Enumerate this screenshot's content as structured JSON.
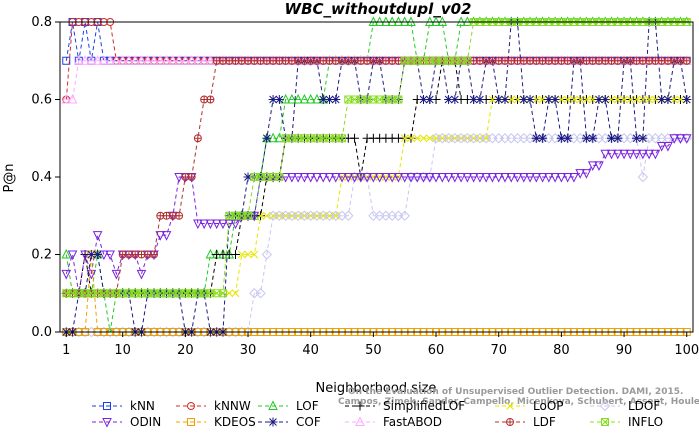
{
  "chart_data": {
    "type": "line",
    "title": "WBC_withoutdupl_v02",
    "xlabel": "Neighborhood size",
    "ylabel": "P@n",
    "xlim": [
      0,
      101
    ],
    "ylim": [
      0,
      0.8
    ],
    "xticks": [
      1,
      10,
      20,
      30,
      40,
      50,
      60,
      70,
      80,
      90,
      100
    ],
    "yticks": [
      0.0,
      0.2,
      0.4,
      0.6,
      0.8
    ],
    "grid": false,
    "legend_position": "bottom",
    "watermark": [
      "Campos, Zimek, Sander, Campello, Micenkova, Schubert, Assent, Houle",
      "On the Evaluation of Unsupervised Outlier Detection. DAMI, 2015."
    ],
    "series": [
      {
        "name": "kNN",
        "color": "#1a3ee6",
        "marker": "square",
        "dash": "4,3",
        "points": [
          [
            1,
            0.7
          ],
          [
            2,
            0.8
          ],
          [
            3,
            0.7
          ],
          [
            4,
            0.8
          ],
          [
            5,
            0.7
          ],
          [
            6,
            0.8
          ],
          [
            7,
            0.7
          ],
          [
            10,
            0.7
          ],
          [
            20,
            0.7
          ],
          [
            40,
            0.7
          ],
          [
            60,
            0.7
          ],
          [
            80,
            0.7
          ],
          [
            100,
            0.7
          ]
        ]
      },
      {
        "name": "kNNW",
        "color": "#d42a2a",
        "marker": "circle",
        "dash": "4,3",
        "points": [
          [
            1,
            0.6
          ],
          [
            2,
            0.8
          ],
          [
            4,
            0.8
          ],
          [
            6,
            0.8
          ],
          [
            8,
            0.8
          ],
          [
            9,
            0.7
          ],
          [
            10,
            0.7
          ],
          [
            30,
            0.7
          ],
          [
            60,
            0.7
          ],
          [
            100,
            0.7
          ]
        ]
      },
      {
        "name": "LOF",
        "color": "#22cc22",
        "marker": "triangle",
        "dash": "4,3",
        "points": [
          [
            1,
            0.2
          ],
          [
            2,
            0.1
          ],
          [
            5,
            0.1
          ],
          [
            6,
            0.2
          ],
          [
            7,
            0.1
          ],
          [
            8,
            0.0
          ],
          [
            9,
            0.1
          ],
          [
            14,
            0.1
          ],
          [
            23,
            0.1
          ],
          [
            24,
            0.2
          ],
          [
            27,
            0.2
          ],
          [
            28,
            0.3
          ],
          [
            31,
            0.3
          ],
          [
            32,
            0.4
          ],
          [
            33,
            0.5
          ],
          [
            35,
            0.5
          ],
          [
            36,
            0.6
          ],
          [
            42,
            0.6
          ],
          [
            43,
            0.7
          ],
          [
            48,
            0.7
          ],
          [
            50,
            0.8
          ],
          [
            56,
            0.8
          ],
          [
            57,
            0.7
          ],
          [
            59,
            0.8
          ],
          [
            62,
            0.7
          ],
          [
            64,
            0.8
          ],
          [
            72,
            0.8
          ],
          [
            82,
            0.8
          ],
          [
            90,
            0.8
          ],
          [
            100,
            0.8
          ]
        ]
      },
      {
        "name": "SimplifiedLOF",
        "color": "#000000",
        "marker": "plus",
        "dash": "4,3",
        "points": [
          [
            1,
            0.1
          ],
          [
            3,
            0.1
          ],
          [
            4,
            0.2
          ],
          [
            5,
            0.1
          ],
          [
            10,
            0.1
          ],
          [
            22,
            0.1
          ],
          [
            25,
            0.2
          ],
          [
            28,
            0.2
          ],
          [
            29,
            0.3
          ],
          [
            32,
            0.3
          ],
          [
            33,
            0.4
          ],
          [
            35,
            0.4
          ],
          [
            36,
            0.5
          ],
          [
            45,
            0.5
          ],
          [
            48,
            0.4
          ],
          [
            49,
            0.5
          ],
          [
            56,
            0.5
          ],
          [
            57,
            0.6
          ],
          [
            60,
            0.6
          ],
          [
            61,
            0.7
          ],
          [
            63,
            0.7
          ],
          [
            64,
            0.6
          ],
          [
            70,
            0.6
          ],
          [
            80,
            0.6
          ],
          [
            100,
            0.6
          ]
        ]
      },
      {
        "name": "LoOP",
        "color": "#e6e600",
        "marker": "x",
        "dash": "4,3",
        "points": [
          [
            1,
            0.1
          ],
          [
            10,
            0.1
          ],
          [
            20,
            0.1
          ],
          [
            28,
            0.1
          ],
          [
            29,
            0.2
          ],
          [
            31,
            0.2
          ],
          [
            32,
            0.3
          ],
          [
            44,
            0.3
          ],
          [
            45,
            0.4
          ],
          [
            54,
            0.4
          ],
          [
            55,
            0.5
          ],
          [
            68,
            0.5
          ],
          [
            69,
            0.6
          ],
          [
            80,
            0.6
          ],
          [
            90,
            0.6
          ],
          [
            100,
            0.6
          ]
        ]
      },
      {
        "name": "LDOF",
        "color": "#c8c8f0",
        "marker": "diamond",
        "dash": "4,3",
        "points": [
          [
            1,
            0.0
          ],
          [
            20,
            0.0
          ],
          [
            30,
            0.0
          ],
          [
            31,
            0.1
          ],
          [
            33,
            0.2
          ],
          [
            34,
            0.3
          ],
          [
            45,
            0.3
          ],
          [
            47,
            0.4
          ],
          [
            50,
            0.3
          ],
          [
            55,
            0.3
          ],
          [
            56,
            0.4
          ],
          [
            60,
            0.5
          ],
          [
            70,
            0.5
          ],
          [
            80,
            0.5
          ],
          [
            92,
            0.5
          ],
          [
            93,
            0.4
          ],
          [
            94,
            0.5
          ],
          [
            100,
            0.5
          ]
        ]
      },
      {
        "name": "ODIN",
        "color": "#7a22e0",
        "marker": "triangle-down",
        "dash": "4,3",
        "points": [
          [
            1,
            0.15
          ],
          [
            2,
            0.2
          ],
          [
            3,
            0.1
          ],
          [
            4,
            0.2
          ],
          [
            5,
            0.15
          ],
          [
            6,
            0.25
          ],
          [
            7,
            0.2
          ],
          [
            8,
            0.2
          ],
          [
            9,
            0.15
          ],
          [
            10,
            0.2
          ],
          [
            12,
            0.2
          ],
          [
            13,
            0.15
          ],
          [
            14,
            0.2
          ],
          [
            16,
            0.25
          ],
          [
            18,
            0.3
          ],
          [
            19,
            0.4
          ],
          [
            21,
            0.4
          ],
          [
            22,
            0.28
          ],
          [
            28,
            0.28
          ],
          [
            29,
            0.3
          ],
          [
            31,
            0.3
          ],
          [
            32,
            0.4
          ],
          [
            70,
            0.4
          ],
          [
            80,
            0.4
          ],
          [
            83,
            0.41
          ],
          [
            85,
            0.43
          ],
          [
            87,
            0.46
          ],
          [
            94,
            0.46
          ],
          [
            96,
            0.48
          ],
          [
            98,
            0.5
          ],
          [
            100,
            0.5
          ]
        ]
      },
      {
        "name": "KDEOS",
        "color": "#f0a000",
        "marker": "square",
        "dash": "4,3",
        "points": [
          [
            1,
            0.0
          ],
          [
            4,
            0.0
          ],
          [
            5,
            0.2
          ],
          [
            6,
            0.0
          ],
          [
            20,
            0.0
          ],
          [
            40,
            0.0
          ],
          [
            60,
            0.0
          ],
          [
            80,
            0.0
          ],
          [
            100,
            0.0
          ]
        ]
      },
      {
        "name": "COF",
        "color": "#1a1a80",
        "marker": "star",
        "dash": "4,3",
        "points": [
          [
            1,
            0.0
          ],
          [
            3,
            0.1
          ],
          [
            5,
            0.2
          ],
          [
            7,
            0.1
          ],
          [
            10,
            0.1
          ],
          [
            12,
            0.0
          ],
          [
            14,
            0.1
          ],
          [
            20,
            0.0
          ],
          [
            22,
            0.1
          ],
          [
            24,
            0.0
          ],
          [
            27,
            0.3
          ],
          [
            30,
            0.4
          ],
          [
            33,
            0.5
          ],
          [
            34,
            0.6
          ],
          [
            36,
            0.5
          ],
          [
            38,
            0.7
          ],
          [
            40,
            0.7
          ],
          [
            42,
            0.6
          ],
          [
            45,
            0.7
          ],
          [
            48,
            0.6
          ],
          [
            50,
            0.7
          ],
          [
            52,
            0.6
          ],
          [
            55,
            0.7
          ],
          [
            58,
            0.6
          ],
          [
            60,
            0.7
          ],
          [
            62,
            0.6
          ],
          [
            64,
            0.7
          ],
          [
            66,
            0.6
          ],
          [
            68,
            0.7
          ],
          [
            70,
            0.6
          ],
          [
            72,
            0.8
          ],
          [
            74,
            0.6
          ],
          [
            76,
            0.5
          ],
          [
            78,
            0.6
          ],
          [
            80,
            0.5
          ],
          [
            82,
            0.7
          ],
          [
            84,
            0.5
          ],
          [
            86,
            0.6
          ],
          [
            88,
            0.5
          ],
          [
            90,
            0.7
          ],
          [
            92,
            0.5
          ],
          [
            94,
            0.8
          ],
          [
            96,
            0.6
          ],
          [
            98,
            0.7
          ],
          [
            100,
            0.6
          ]
        ]
      },
      {
        "name": "FastABOD",
        "color": "#ffaaff",
        "marker": "triangle",
        "dash": "4,3",
        "points": [
          [
            1,
            0.6
          ],
          [
            2,
            0.6
          ],
          [
            3,
            0.7
          ],
          [
            5,
            0.7
          ],
          [
            20,
            0.7
          ],
          [
            40,
            0.7
          ],
          [
            60,
            0.7
          ],
          [
            80,
            0.7
          ],
          [
            100,
            0.7
          ]
        ]
      },
      {
        "name": "LDF",
        "color": "#b03030",
        "marker": "circle-cross",
        "dash": "4,3",
        "points": [
          [
            1,
            0.1
          ],
          [
            10,
            0.2
          ],
          [
            13,
            0.2
          ],
          [
            16,
            0.3
          ],
          [
            18,
            0.3
          ],
          [
            20,
            0.4
          ],
          [
            21,
            0.4
          ],
          [
            22,
            0.5
          ],
          [
            23,
            0.6
          ],
          [
            24,
            0.6
          ],
          [
            25,
            0.7
          ],
          [
            40,
            0.7
          ],
          [
            60,
            0.7
          ],
          [
            80,
            0.7
          ],
          [
            100,
            0.7
          ]
        ]
      },
      {
        "name": "INFLO",
        "color": "#88dd22",
        "marker": "square-x",
        "dash": "4,3",
        "points": [
          [
            1,
            0.1
          ],
          [
            5,
            0.1
          ],
          [
            10,
            0.1
          ],
          [
            20,
            0.1
          ],
          [
            26,
            0.1
          ],
          [
            27,
            0.3
          ],
          [
            30,
            0.3
          ],
          [
            31,
            0.4
          ],
          [
            35,
            0.4
          ],
          [
            36,
            0.5
          ],
          [
            45,
            0.5
          ],
          [
            46,
            0.6
          ],
          [
            54,
            0.6
          ],
          [
            55,
            0.7
          ],
          [
            65,
            0.7
          ],
          [
            66,
            0.8
          ],
          [
            72,
            0.8
          ],
          [
            100,
            0.8
          ]
        ]
      }
    ]
  }
}
